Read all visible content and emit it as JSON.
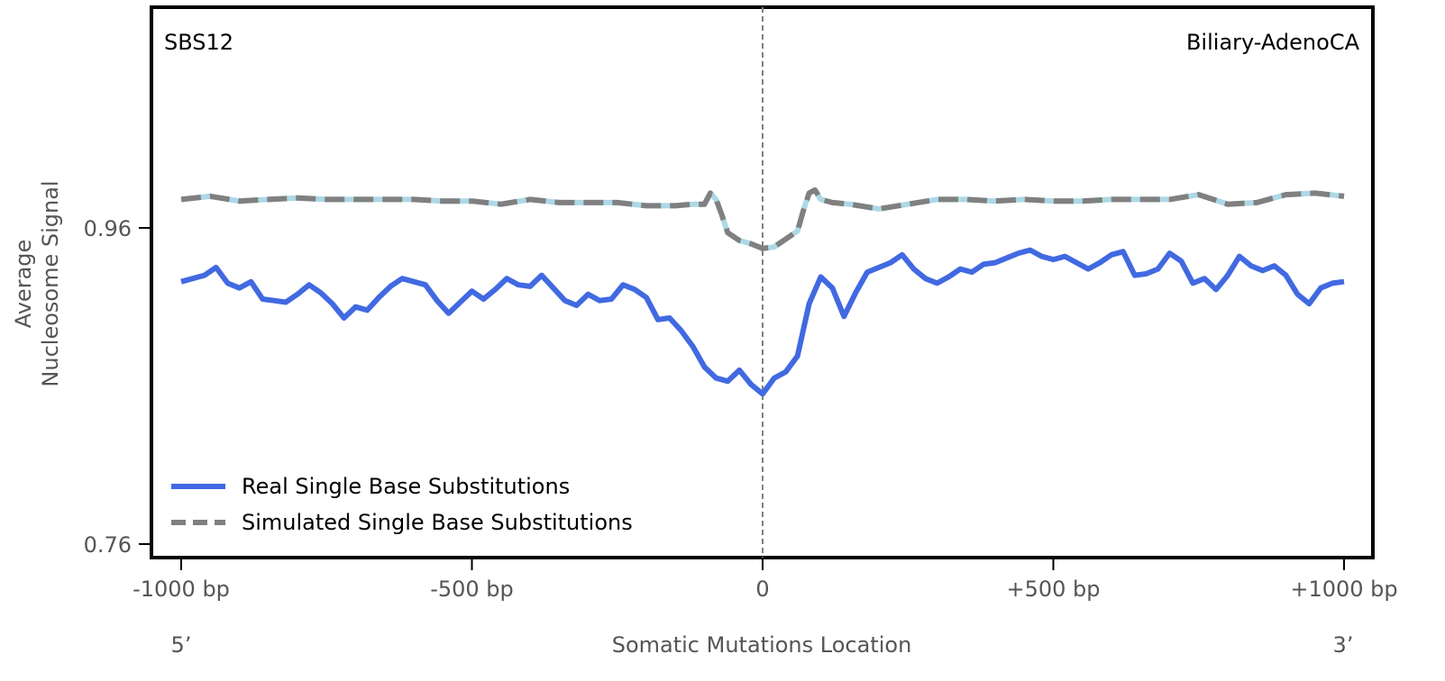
{
  "chart_data": {
    "type": "line",
    "signature": "SBS12",
    "cancer_type": "Biliary-AdenoCA",
    "xlabel": "Somatic Mutations Location",
    "ylabel_line1": "Average",
    "ylabel_line2": "Nucleosome Signal",
    "xlim": [
      -1000,
      1000
    ],
    "ylim": [
      0.76,
      1.09
    ],
    "x_ticks": [
      {
        "value": -1000,
        "label": "-1000 bp"
      },
      {
        "value": -500,
        "label": "-500 bp"
      },
      {
        "value": 0,
        "label": "0"
      },
      {
        "value": 500,
        "label": "+500 bp"
      },
      {
        "value": 1000,
        "label": "+1000 bp"
      }
    ],
    "y_ticks": [
      {
        "value": 0.76,
        "label": "0.76"
      },
      {
        "value": 0.96,
        "label": "0.96"
      }
    ],
    "end_labels": {
      "left": "5’",
      "right": "3’"
    },
    "center_line": {
      "x": 0,
      "style": "dashed",
      "color": "#808080"
    },
    "legend_location": "lower-left",
    "series": [
      {
        "name": "Real Single Base Substitutions",
        "style": "solid",
        "color": "#4169E1",
        "x": [
          -1000,
          -960,
          -940,
          -920,
          -900,
          -880,
          -860,
          -840,
          -820,
          -800,
          -780,
          -760,
          -740,
          -720,
          -700,
          -680,
          -660,
          -640,
          -620,
          -600,
          -580,
          -560,
          -540,
          -520,
          -500,
          -480,
          -460,
          -440,
          -420,
          -400,
          -380,
          -360,
          -340,
          -320,
          -300,
          -280,
          -260,
          -240,
          -220,
          -200,
          -180,
          -160,
          -140,
          -120,
          -100,
          -80,
          -60,
          -40,
          -20,
          0,
          20,
          40,
          60,
          80,
          100,
          120,
          140,
          160,
          180,
          200,
          220,
          240,
          260,
          280,
          300,
          320,
          340,
          360,
          380,
          400,
          420,
          440,
          460,
          480,
          500,
          520,
          540,
          560,
          580,
          600,
          620,
          640,
          660,
          680,
          700,
          720,
          740,
          760,
          780,
          800,
          820,
          840,
          860,
          880,
          900,
          920,
          940,
          960,
          980,
          1000
        ],
        "y": [
          0.926,
          0.93,
          0.935,
          0.925,
          0.922,
          0.926,
          0.915,
          0.914,
          0.913,
          0.918,
          0.924,
          0.919,
          0.912,
          0.903,
          0.91,
          0.908,
          0.916,
          0.923,
          0.928,
          0.926,
          0.924,
          0.914,
          0.906,
          0.913,
          0.92,
          0.915,
          0.921,
          0.928,
          0.924,
          0.923,
          0.93,
          0.922,
          0.914,
          0.911,
          0.918,
          0.914,
          0.915,
          0.924,
          0.921,
          0.916,
          0.902,
          0.903,
          0.895,
          0.885,
          0.872,
          0.865,
          0.863,
          0.87,
          0.861,
          0.855,
          0.865,
          0.869,
          0.879,
          0.912,
          0.929,
          0.922,
          0.904,
          0.919,
          0.932,
          0.935,
          0.938,
          0.943,
          0.934,
          0.928,
          0.925,
          0.929,
          0.934,
          0.932,
          0.937,
          0.938,
          0.941,
          0.944,
          0.946,
          0.942,
          0.94,
          0.942,
          0.938,
          0.934,
          0.938,
          0.943,
          0.945,
          0.93,
          0.931,
          0.934,
          0.944,
          0.939,
          0.925,
          0.928,
          0.921,
          0.93,
          0.942,
          0.936,
          0.933,
          0.936,
          0.93,
          0.918,
          0.912,
          0.922,
          0.925,
          0.926
        ]
      },
      {
        "name": "Simulated Single Base Substitutions",
        "style": "dashed",
        "color": "#808080",
        "x": [
          -1000,
          -950,
          -900,
          -850,
          -800,
          -750,
          -700,
          -650,
          -600,
          -550,
          -500,
          -450,
          -400,
          -350,
          -300,
          -250,
          -200,
          -150,
          -120,
          -100,
          -90,
          -80,
          -70,
          -60,
          -40,
          -20,
          0,
          20,
          40,
          60,
          70,
          80,
          90,
          100,
          120,
          150,
          200,
          250,
          300,
          350,
          400,
          450,
          500,
          550,
          600,
          650,
          700,
          750,
          800,
          850,
          900,
          950,
          1000
        ],
        "y": [
          0.978,
          0.98,
          0.977,
          0.978,
          0.979,
          0.978,
          0.978,
          0.978,
          0.978,
          0.977,
          0.977,
          0.975,
          0.978,
          0.976,
          0.976,
          0.976,
          0.974,
          0.974,
          0.975,
          0.975,
          0.982,
          0.978,
          0.968,
          0.957,
          0.952,
          0.95,
          0.947,
          0.948,
          0.953,
          0.958,
          0.971,
          0.982,
          0.984,
          0.978,
          0.976,
          0.975,
          0.972,
          0.975,
          0.978,
          0.978,
          0.977,
          0.978,
          0.977,
          0.977,
          0.978,
          0.978,
          0.978,
          0.981,
          0.975,
          0.976,
          0.981,
          0.982,
          0.98
        ]
      }
    ]
  }
}
